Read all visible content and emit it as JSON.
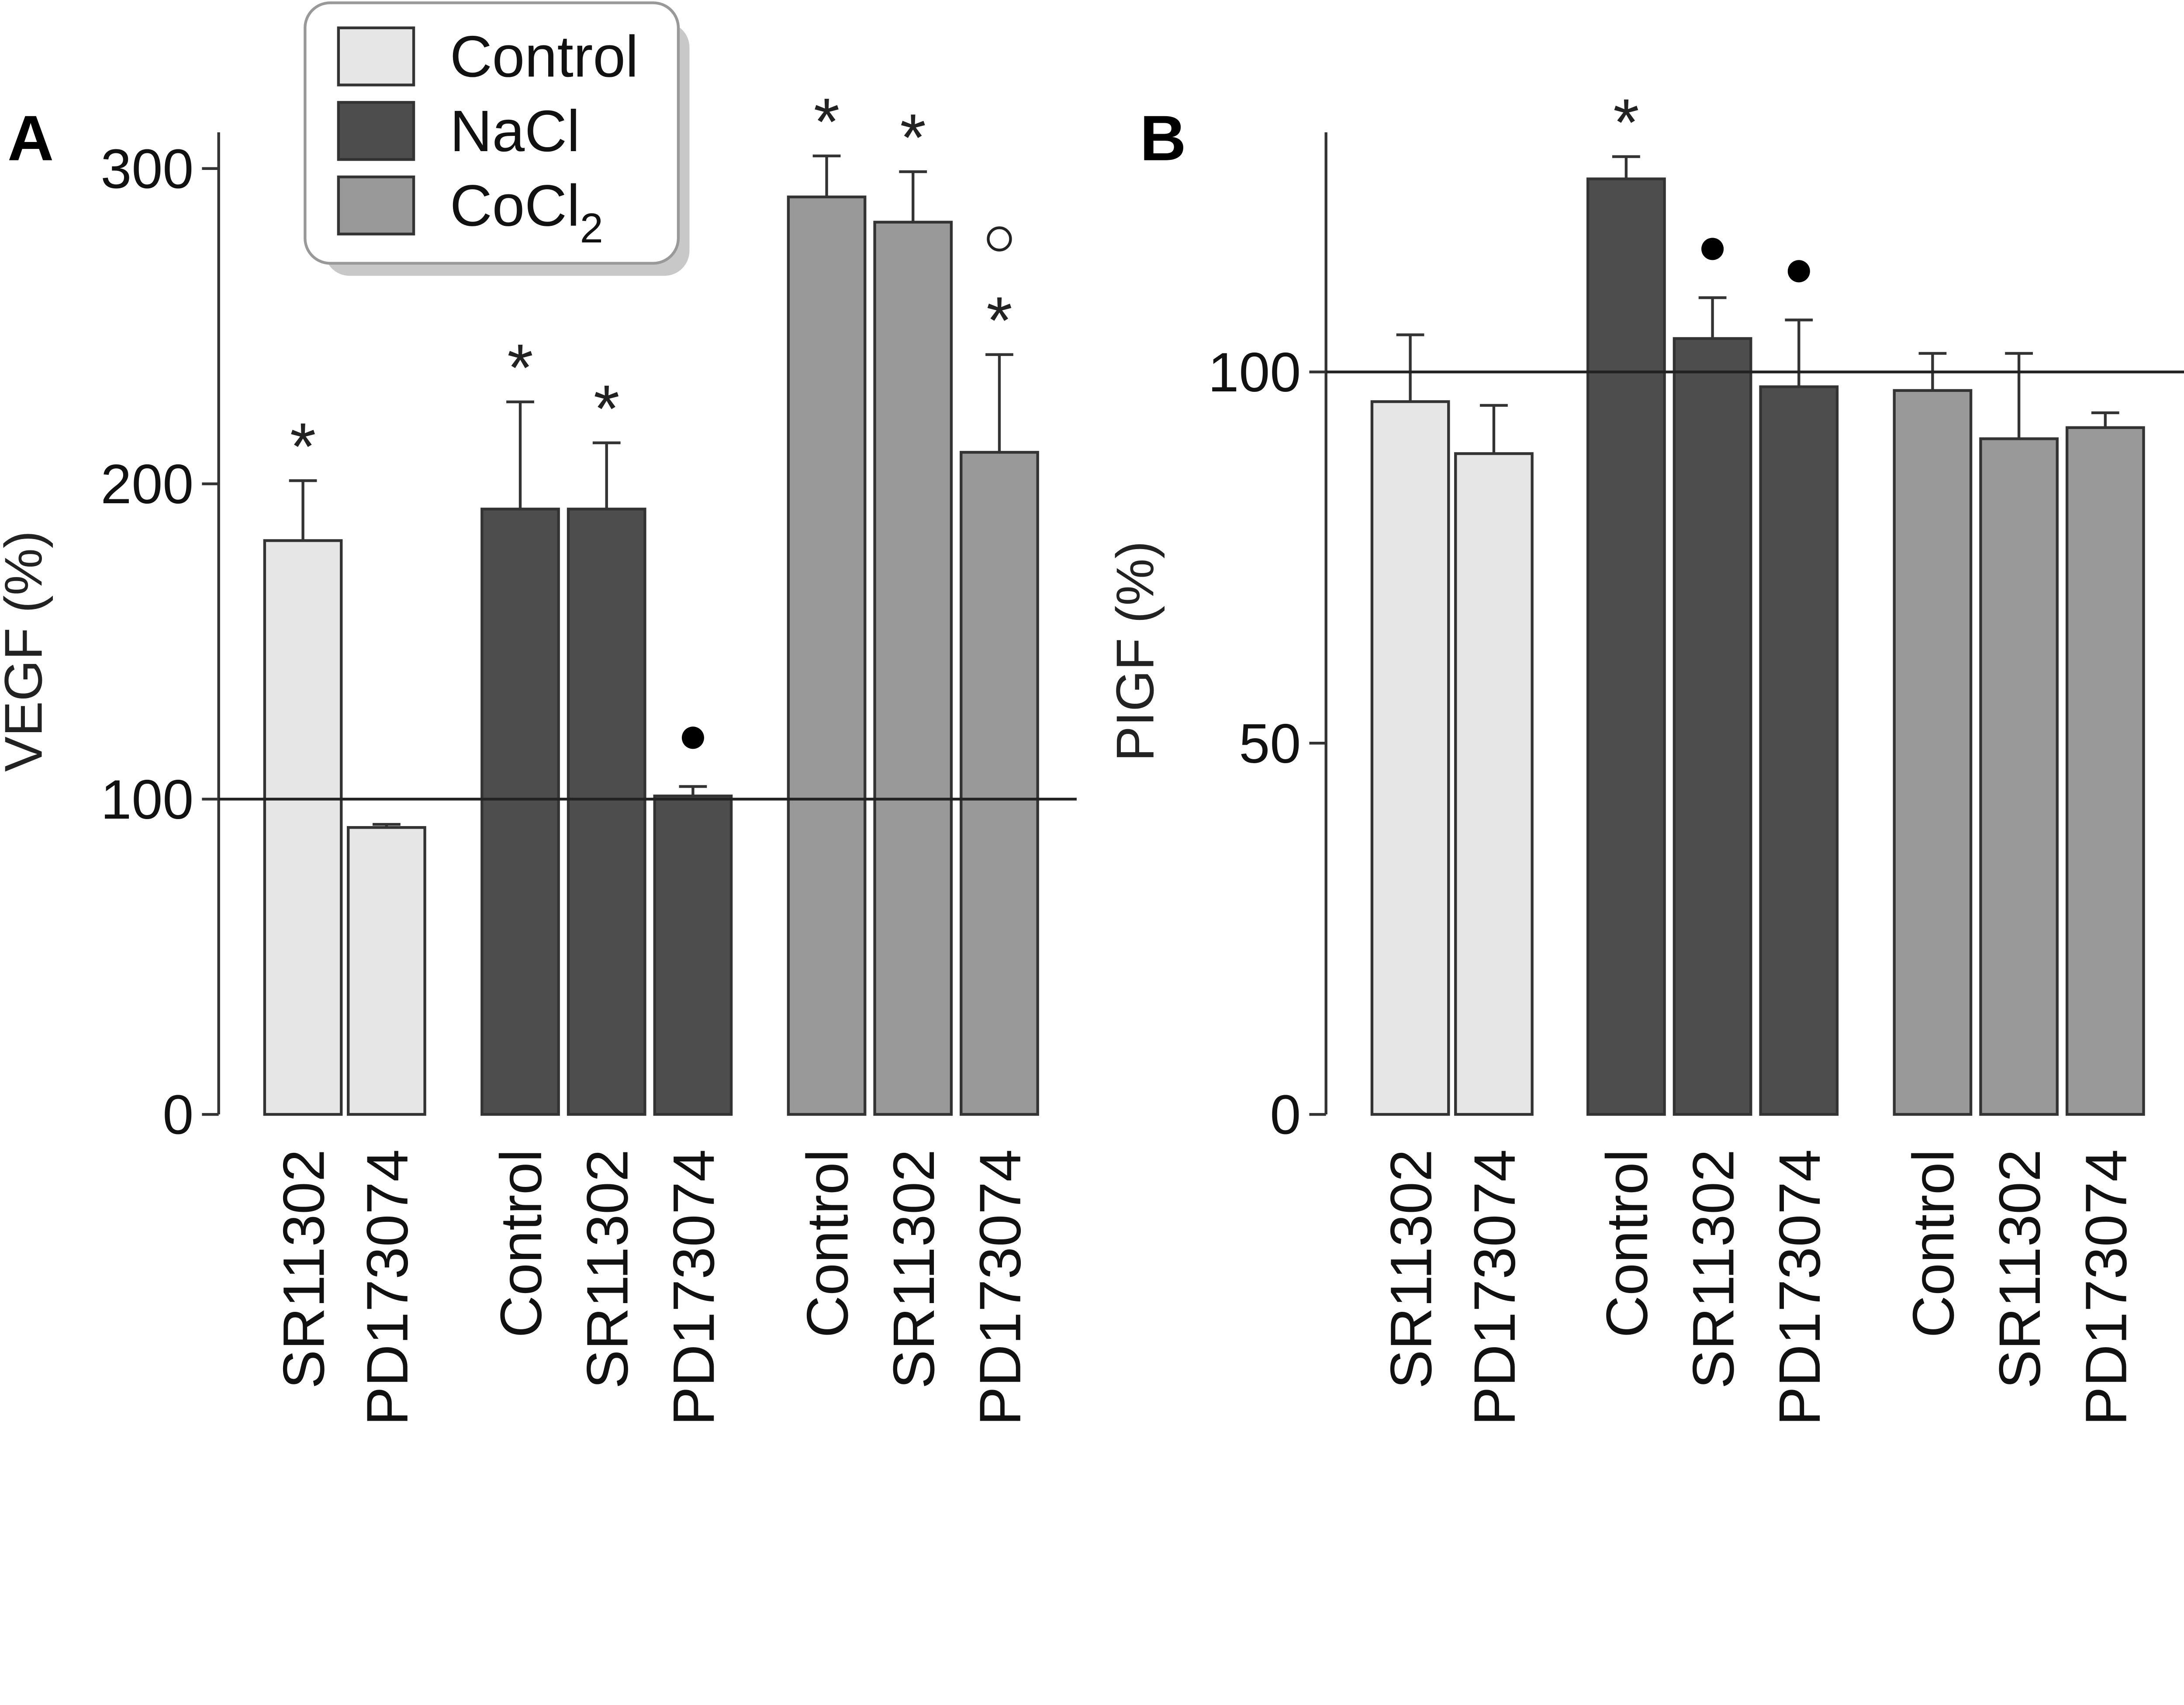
{
  "legend": {
    "placement": "top-left",
    "entries": [
      {
        "label": "Control",
        "color": "#e6e6e6"
      },
      {
        "label": "NaCl",
        "color": "#4d4d4d"
      },
      {
        "label": "CoCl",
        "subscript": "2",
        "color": "#999999"
      }
    ]
  },
  "chart_data": [
    {
      "type": "bar",
      "panel_label": "A",
      "ylabel": "VEGF (%)",
      "ylim": [
        0,
        300
      ],
      "yticks": [
        "0",
        "100",
        "200",
        "300"
      ],
      "reference_line": 100,
      "groups": [
        {
          "series": "Control",
          "bars": [
            {
              "category": "SR11302",
              "value": 182,
              "error_upper": 201,
              "annotations": [
                "*"
              ]
            },
            {
              "category": "PD173074",
              "value": 91,
              "error_upper": 92,
              "annotations": []
            }
          ]
        },
        {
          "series": "NaCl",
          "bars": [
            {
              "category": "Control",
              "value": 192,
              "error_upper": 226,
              "annotations": [
                "*"
              ]
            },
            {
              "category": "SR11302",
              "value": 192,
              "error_upper": 213,
              "annotations": [
                "*"
              ]
            },
            {
              "category": "PD173074",
              "value": 101,
              "error_upper": 104,
              "annotations": [
                "●"
              ]
            }
          ]
        },
        {
          "series": "CoCl2",
          "bars": [
            {
              "category": "Control",
              "value": 291,
              "error_upper": 304,
              "annotations": [
                "*"
              ]
            },
            {
              "category": "SR11302",
              "value": 283,
              "error_upper": 299,
              "annotations": [
                "*"
              ]
            },
            {
              "category": "PD173074",
              "value": 210,
              "error_upper": 241,
              "annotations": [
                "*",
                "○"
              ]
            }
          ]
        }
      ]
    },
    {
      "type": "bar",
      "panel_label": "B",
      "ylabel": "PIGF (%)",
      "ylim": [
        0,
        132
      ],
      "yticks": [
        "0",
        "50",
        "100"
      ],
      "reference_line": 100,
      "groups": [
        {
          "series": "Control",
          "bars": [
            {
              "category": "SR11302",
              "value": 96,
              "error_upper": 105,
              "annotations": []
            },
            {
              "category": "PD173074",
              "value": 89,
              "error_upper": 95.5,
              "annotations": []
            }
          ]
        },
        {
          "series": "NaCl",
          "bars": [
            {
              "category": "Control",
              "value": 126,
              "error_upper": 129,
              "annotations": [
                "*"
              ]
            },
            {
              "category": "SR11302",
              "value": 104.5,
              "error_upper": 110,
              "annotations": [
                "●"
              ]
            },
            {
              "category": "PD173074",
              "value": 98,
              "error_upper": 107,
              "annotations": [
                "●"
              ]
            }
          ]
        },
        {
          "series": "CoCl2",
          "bars": [
            {
              "category": "Control",
              "value": 97.5,
              "error_upper": 102.5,
              "annotations": []
            },
            {
              "category": "SR11302",
              "value": 91,
              "error_upper": 102.5,
              "annotations": []
            },
            {
              "category": "PD173074",
              "value": 92.5,
              "error_upper": 94.5,
              "annotations": []
            }
          ]
        }
      ]
    }
  ]
}
